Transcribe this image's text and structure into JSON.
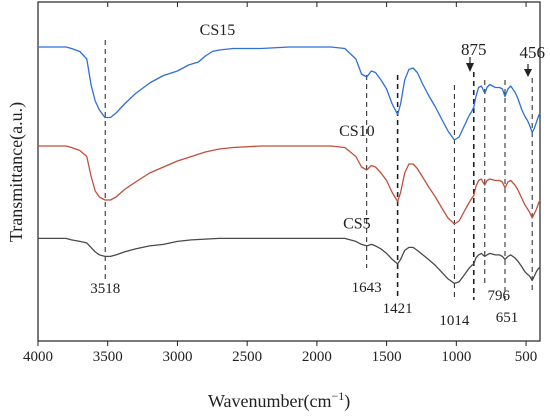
{
  "chart_data": {
    "type": "line",
    "xlabel": "Wavenumber(cm",
    "xlabel_sup": "−1",
    "xlabel_close": ")",
    "ylabel": "Transmittance(a.u.)",
    "xlim": [
      4000,
      400
    ],
    "x_reversed": true,
    "x_ticks": [
      4000,
      3500,
      3000,
      2500,
      2000,
      1500,
      1000,
      500
    ],
    "y_ticks_shown": false,
    "grid": false,
    "series": [
      {
        "name": "CS15",
        "color": "#2f6fd6",
        "offset": 0.95,
        "points": [
          [
            4000,
            0.0
          ],
          [
            3900,
            0.0
          ],
          [
            3800,
            0.0
          ],
          [
            3760,
            -0.01
          ],
          [
            3700,
            -0.03
          ],
          [
            3650,
            -0.08
          ],
          [
            3620,
            -0.25
          ],
          [
            3590,
            -0.36
          ],
          [
            3560,
            -0.42
          ],
          [
            3520,
            -0.47
          ],
          [
            3480,
            -0.47
          ],
          [
            3440,
            -0.44
          ],
          [
            3380,
            -0.38
          ],
          [
            3300,
            -0.31
          ],
          [
            3200,
            -0.24
          ],
          [
            3100,
            -0.19
          ],
          [
            3000,
            -0.16
          ],
          [
            2920,
            -0.12
          ],
          [
            2850,
            -0.1
          ],
          [
            2800,
            -0.06
          ],
          [
            2750,
            -0.03
          ],
          [
            2700,
            -0.02
          ],
          [
            2600,
            -0.01
          ],
          [
            2400,
            -0.01
          ],
          [
            2200,
            0.0
          ],
          [
            2000,
            0.0
          ],
          [
            1900,
            0.0
          ],
          [
            1800,
            -0.01
          ],
          [
            1720,
            -0.08
          ],
          [
            1680,
            -0.18
          ],
          [
            1643,
            -0.2
          ],
          [
            1610,
            -0.16
          ],
          [
            1580,
            -0.17
          ],
          [
            1540,
            -0.22
          ],
          [
            1500,
            -0.28
          ],
          [
            1460,
            -0.38
          ],
          [
            1421,
            -0.45
          ],
          [
            1400,
            -0.38
          ],
          [
            1370,
            -0.22
          ],
          [
            1340,
            -0.15
          ],
          [
            1310,
            -0.14
          ],
          [
            1280,
            -0.17
          ],
          [
            1240,
            -0.25
          ],
          [
            1200,
            -0.32
          ],
          [
            1150,
            -0.4
          ],
          [
            1100,
            -0.49
          ],
          [
            1060,
            -0.56
          ],
          [
            1014,
            -0.62
          ],
          [
            980,
            -0.6
          ],
          [
            940,
            -0.52
          ],
          [
            910,
            -0.46
          ],
          [
            890,
            -0.43
          ],
          [
            875,
            -0.4
          ],
          [
            860,
            -0.33
          ],
          [
            840,
            -0.27
          ],
          [
            820,
            -0.26
          ],
          [
            810,
            -0.28
          ],
          [
            796,
            -0.31
          ],
          [
            780,
            -0.27
          ],
          [
            760,
            -0.25
          ],
          [
            720,
            -0.27
          ],
          [
            690,
            -0.27
          ],
          [
            670,
            -0.28
          ],
          [
            651,
            -0.33
          ],
          [
            630,
            -0.28
          ],
          [
            610,
            -0.26
          ],
          [
            580,
            -0.3
          ],
          [
            560,
            -0.34
          ],
          [
            530,
            -0.42
          ],
          [
            510,
            -0.46
          ],
          [
            490,
            -0.49
          ],
          [
            475,
            -0.52
          ],
          [
            456,
            -0.57
          ],
          [
            440,
            -0.54
          ],
          [
            425,
            -0.5
          ],
          [
            410,
            -0.46
          ],
          [
            400,
            -0.44
          ]
        ]
      },
      {
        "name": "CS10",
        "color": "#c0503a",
        "offset": 0.5,
        "points": [
          [
            4000,
            0.0
          ],
          [
            3900,
            0.0
          ],
          [
            3800,
            0.0
          ],
          [
            3760,
            -0.01
          ],
          [
            3700,
            -0.03
          ],
          [
            3650,
            -0.07
          ],
          [
            3620,
            -0.2
          ],
          [
            3590,
            -0.3
          ],
          [
            3560,
            -0.34
          ],
          [
            3520,
            -0.36
          ],
          [
            3480,
            -0.36
          ],
          [
            3440,
            -0.34
          ],
          [
            3380,
            -0.29
          ],
          [
            3300,
            -0.24
          ],
          [
            3200,
            -0.18
          ],
          [
            3100,
            -0.14
          ],
          [
            3000,
            -0.1
          ],
          [
            2900,
            -0.07
          ],
          [
            2800,
            -0.04
          ],
          [
            2700,
            -0.02
          ],
          [
            2600,
            -0.01
          ],
          [
            2400,
            0.0
          ],
          [
            2200,
            0.0
          ],
          [
            2000,
            0.0
          ],
          [
            1900,
            0.0
          ],
          [
            1800,
            -0.01
          ],
          [
            1720,
            -0.07
          ],
          [
            1680,
            -0.14
          ],
          [
            1643,
            -0.16
          ],
          [
            1610,
            -0.13
          ],
          [
            1580,
            -0.14
          ],
          [
            1540,
            -0.18
          ],
          [
            1500,
            -0.23
          ],
          [
            1460,
            -0.31
          ],
          [
            1421,
            -0.37
          ],
          [
            1400,
            -0.31
          ],
          [
            1370,
            -0.18
          ],
          [
            1340,
            -0.12
          ],
          [
            1310,
            -0.12
          ],
          [
            1280,
            -0.15
          ],
          [
            1240,
            -0.21
          ],
          [
            1200,
            -0.27
          ],
          [
            1150,
            -0.34
          ],
          [
            1100,
            -0.42
          ],
          [
            1060,
            -0.48
          ],
          [
            1014,
            -0.52
          ],
          [
            980,
            -0.5
          ],
          [
            940,
            -0.43
          ],
          [
            910,
            -0.38
          ],
          [
            890,
            -0.35
          ],
          [
            875,
            -0.33
          ],
          [
            860,
            -0.27
          ],
          [
            840,
            -0.23
          ],
          [
            820,
            -0.22
          ],
          [
            810,
            -0.24
          ],
          [
            796,
            -0.26
          ],
          [
            780,
            -0.23
          ],
          [
            760,
            -0.22
          ],
          [
            720,
            -0.23
          ],
          [
            690,
            -0.23
          ],
          [
            670,
            -0.24
          ],
          [
            651,
            -0.28
          ],
          [
            630,
            -0.24
          ],
          [
            610,
            -0.23
          ],
          [
            580,
            -0.26
          ],
          [
            560,
            -0.29
          ],
          [
            530,
            -0.35
          ],
          [
            510,
            -0.39
          ],
          [
            490,
            -0.42
          ],
          [
            475,
            -0.44
          ],
          [
            456,
            -0.48
          ],
          [
            440,
            -0.45
          ],
          [
            425,
            -0.42
          ],
          [
            410,
            -0.38
          ],
          [
            400,
            -0.36
          ]
        ]
      },
      {
        "name": "CS5",
        "color": "#4a4a4a",
        "offset": 0.08,
        "points": [
          [
            4000,
            0.0
          ],
          [
            3900,
            0.0
          ],
          [
            3800,
            0.0
          ],
          [
            3760,
            -0.01
          ],
          [
            3700,
            -0.02
          ],
          [
            3650,
            -0.03
          ],
          [
            3620,
            -0.06
          ],
          [
            3590,
            -0.09
          ],
          [
            3560,
            -0.11
          ],
          [
            3520,
            -0.12
          ],
          [
            3480,
            -0.12
          ],
          [
            3440,
            -0.11
          ],
          [
            3380,
            -0.09
          ],
          [
            3300,
            -0.07
          ],
          [
            3200,
            -0.05
          ],
          [
            3100,
            -0.04
          ],
          [
            3000,
            -0.02
          ],
          [
            2900,
            -0.01
          ],
          [
            2700,
            0.0
          ],
          [
            2500,
            0.0
          ],
          [
            2300,
            0.0
          ],
          [
            2100,
            0.0
          ],
          [
            1900,
            0.0
          ],
          [
            1800,
            0.0
          ],
          [
            1720,
            -0.02
          ],
          [
            1680,
            -0.04
          ],
          [
            1643,
            -0.05
          ],
          [
            1610,
            -0.04
          ],
          [
            1580,
            -0.05
          ],
          [
            1540,
            -0.07
          ],
          [
            1500,
            -0.1
          ],
          [
            1460,
            -0.14
          ],
          [
            1421,
            -0.17
          ],
          [
            1400,
            -0.14
          ],
          [
            1370,
            -0.08
          ],
          [
            1340,
            -0.06
          ],
          [
            1310,
            -0.06
          ],
          [
            1280,
            -0.08
          ],
          [
            1240,
            -0.11
          ],
          [
            1200,
            -0.14
          ],
          [
            1150,
            -0.18
          ],
          [
            1100,
            -0.23
          ],
          [
            1060,
            -0.27
          ],
          [
            1014,
            -0.3
          ],
          [
            980,
            -0.29
          ],
          [
            940,
            -0.24
          ],
          [
            910,
            -0.2
          ],
          [
            890,
            -0.18
          ],
          [
            875,
            -0.17
          ],
          [
            860,
            -0.13
          ],
          [
            840,
            -0.11
          ],
          [
            820,
            -0.1
          ],
          [
            810,
            -0.11
          ],
          [
            796,
            -0.12
          ],
          [
            780,
            -0.11
          ],
          [
            760,
            -0.1
          ],
          [
            720,
            -0.11
          ],
          [
            690,
            -0.11
          ],
          [
            670,
            -0.12
          ],
          [
            651,
            -0.14
          ],
          [
            630,
            -0.12
          ],
          [
            610,
            -0.11
          ],
          [
            580,
            -0.13
          ],
          [
            560,
            -0.15
          ],
          [
            530,
            -0.19
          ],
          [
            510,
            -0.22
          ],
          [
            490,
            -0.24
          ],
          [
            475,
            -0.25
          ],
          [
            456,
            -0.28
          ],
          [
            440,
            -0.25
          ],
          [
            425,
            -0.22
          ],
          [
            410,
            -0.2
          ],
          [
            400,
            -0.19
          ]
        ]
      }
    ],
    "peak_markers": [
      {
        "wavenumber": 3518,
        "label": "3518"
      },
      {
        "wavenumber": 1643,
        "label": "1643"
      },
      {
        "wavenumber": 1421,
        "label": "1421"
      },
      {
        "wavenumber": 1014,
        "label": "1014"
      },
      {
        "wavenumber": 875,
        "label": "875"
      },
      {
        "wavenumber": 796,
        "label": "796"
      },
      {
        "wavenumber": 651,
        "label": "651"
      },
      {
        "wavenumber": 456,
        "label": "456"
      }
    ]
  }
}
